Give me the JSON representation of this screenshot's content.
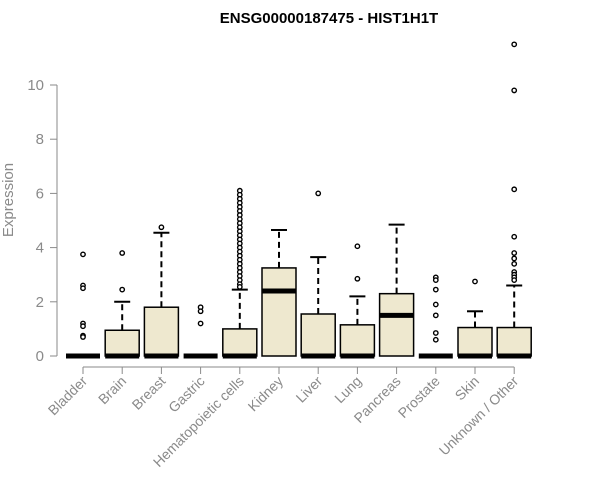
{
  "chart_data": {
    "type": "boxplot",
    "title": "ENSG00000187475 - HIST1H1T",
    "xlabel": "",
    "ylabel": "Expression",
    "ylim": [
      0,
      11.5
    ],
    "yticks": [
      0,
      2,
      4,
      6,
      8,
      10
    ],
    "grid": false,
    "legend": "none",
    "box_color": "#eee8cf",
    "categories": [
      "Bladder",
      "Brain",
      "Breast",
      "Gastric",
      "Hematopoietic cells",
      "Kidney",
      "Liver",
      "Lung",
      "Pancreas",
      "Prostate",
      "Skin",
      "Unknown / Other"
    ],
    "boxes": [
      {
        "q1": 0,
        "median": 0,
        "q3": 0,
        "whisker_low": 0,
        "whisker_high": 0,
        "outliers": [
          3.75,
          2.6,
          2.5,
          1.2,
          1.1,
          0.75,
          0.7
        ]
      },
      {
        "q1": 0,
        "median": 0,
        "q3": 0.95,
        "whisker_low": 0,
        "whisker_high": 2.0,
        "outliers": [
          3.8,
          2.45
        ]
      },
      {
        "q1": 0,
        "median": 0,
        "q3": 1.8,
        "whisker_low": 0,
        "whisker_high": 4.55,
        "outliers": [
          4.75
        ]
      },
      {
        "q1": 0,
        "median": 0,
        "q3": 0,
        "whisker_low": 0,
        "whisker_high": 0,
        "outliers": [
          1.8,
          1.65,
          1.2
        ]
      },
      {
        "q1": 0,
        "median": 0,
        "q3": 1.0,
        "whisker_low": 0,
        "whisker_high": 2.45,
        "outliers": [
          6.1,
          5.95,
          5.8,
          5.65,
          5.5,
          5.35,
          5.2,
          5.05,
          4.9,
          4.75,
          4.6,
          4.45,
          4.3,
          4.15,
          4.0,
          3.85,
          3.7,
          3.55,
          3.4,
          3.25,
          3.1,
          2.95,
          2.8,
          2.65,
          2.55
        ]
      },
      {
        "q1": 0,
        "median": 2.4,
        "q3": 3.25,
        "whisker_low": 0,
        "whisker_high": 4.65,
        "outliers": []
      },
      {
        "q1": 0,
        "median": 0,
        "q3": 1.55,
        "whisker_low": 0,
        "whisker_high": 3.65,
        "outliers": [
          6.0
        ]
      },
      {
        "q1": 0,
        "median": 0,
        "q3": 1.15,
        "whisker_low": 0,
        "whisker_high": 2.2,
        "outliers": [
          4.05,
          2.85
        ]
      },
      {
        "q1": 0,
        "median": 1.5,
        "q3": 2.3,
        "whisker_low": 0,
        "whisker_high": 4.85,
        "outliers": []
      },
      {
        "q1": 0,
        "median": 0,
        "q3": 0,
        "whisker_low": 0,
        "whisker_high": 0,
        "outliers": [
          2.9,
          2.8,
          2.45,
          1.9,
          1.5,
          0.85,
          0.6
        ]
      },
      {
        "q1": 0,
        "median": 0,
        "q3": 1.05,
        "whisker_low": 0,
        "whisker_high": 1.65,
        "outliers": [
          2.75
        ]
      },
      {
        "q1": 0,
        "median": 0,
        "q3": 1.05,
        "whisker_low": 0,
        "whisker_high": 2.6,
        "outliers": [
          11.5,
          9.8,
          6.15,
          4.4,
          3.8,
          3.6,
          3.4,
          3.1,
          3.0,
          2.9,
          2.8
        ]
      }
    ]
  }
}
